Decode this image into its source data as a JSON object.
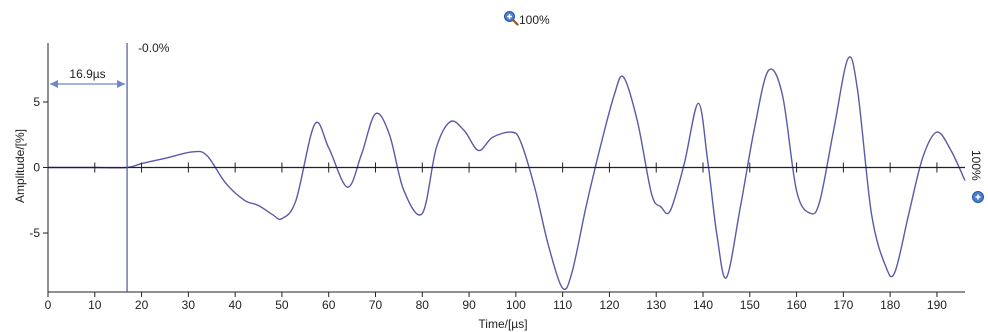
{
  "zoom": {
    "horizontal_label": "100%",
    "vertical_label": "100%",
    "icon": "zoom-magnifier-icon"
  },
  "colors": {
    "signal": "#5a5aa8",
    "axis": "#222222",
    "cursor": "#4a5a9a",
    "marker": "#6f86c8"
  },
  "chart_data": {
    "type": "line",
    "title": "",
    "xlabel": "Time/[µs]",
    "ylabel": "Amplitude/[%]",
    "xlim": [
      0,
      196
    ],
    "ylim": [
      -9.5,
      9.5
    ],
    "xticks": [
      0,
      10,
      20,
      30,
      40,
      50,
      60,
      70,
      80,
      90,
      100,
      110,
      120,
      130,
      140,
      150,
      160,
      170,
      180,
      190
    ],
    "yticks": [
      -5,
      0,
      5
    ],
    "grid": false,
    "cursor": {
      "time": 16.9,
      "measure_label": "16.9µs",
      "amplitude_label": "-0.0%"
    },
    "series": [
      {
        "x": [
          0,
          5,
          10,
          16.9,
          20,
          25,
          31,
          34,
          38,
          42,
          45,
          48,
          50,
          53,
          57,
          60,
          64,
          67,
          70,
          73,
          76,
          80,
          83,
          86,
          89,
          92,
          95,
          99,
          101,
          104,
          107,
          110,
          112,
          115,
          118,
          121,
          123,
          126,
          129,
          131,
          133,
          136,
          139,
          141,
          143,
          145,
          148,
          151,
          154,
          157,
          160,
          163,
          165,
          168,
          171,
          173,
          176,
          179,
          181,
          184,
          187,
          190,
          193,
          196
        ],
        "y": [
          0,
          0,
          0,
          0,
          0.3,
          0.7,
          1.2,
          0.9,
          -1.2,
          -2.5,
          -2.9,
          -3.6,
          -3.9,
          -2.5,
          3.3,
          1.5,
          -1.5,
          1.0,
          4.1,
          2.5,
          -1.7,
          -3.5,
          1.5,
          3.5,
          2.8,
          1.3,
          2.3,
          2.7,
          2.0,
          -1.5,
          -6.0,
          -9.2,
          -8.0,
          -3.0,
          1.5,
          5.5,
          6.9,
          3.5,
          -2.0,
          -3.0,
          -3.3,
          0.3,
          4.9,
          0.5,
          -5.2,
          -8.4,
          -3.0,
          3.0,
          7.4,
          5.5,
          -1.8,
          -3.5,
          -2.5,
          3.0,
          8.3,
          6.0,
          -3.5,
          -7.5,
          -8.0,
          -3.5,
          0.8,
          2.7,
          1.3,
          -1.0
        ]
      }
    ]
  }
}
